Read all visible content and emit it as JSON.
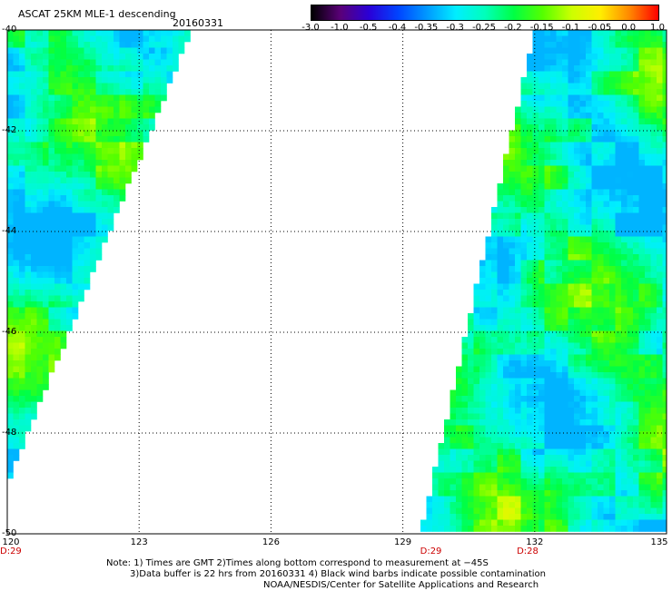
{
  "header": {
    "title": "ASCAT 25KM MLE-1 descending",
    "date": "20160331"
  },
  "colorbar": {
    "tick_labels": [
      "-3.0",
      "-1.0",
      "-0.5",
      "-0.4",
      "-0.35",
      "-0.3",
      "-0.25",
      "-0.2",
      "-0.15",
      "-0.1",
      "-0.05",
      "0.0",
      "1.0"
    ],
    "stops": [
      "#000000",
      "#5a0078",
      "#2a00d8",
      "#0044ff",
      "#0099ff",
      "#00eeff",
      "#00ffbb",
      "#00ff44",
      "#55ff00",
      "#ccff00",
      "#ffee00",
      "#ff8800",
      "#ff0000"
    ]
  },
  "map": {
    "lon_range": [
      120,
      135
    ],
    "lat_range": [
      -50,
      -40
    ],
    "lon_ticks": [
      "120",
      "123",
      "126",
      "129",
      "132",
      "135"
    ],
    "lat_ticks": [
      "-40",
      "-42",
      "-44",
      "-46",
      "-48",
      "-50"
    ],
    "time_labels": [
      {
        "text": "D:29",
        "lon": 120.0
      },
      {
        "text": "D:29",
        "lon": 129.6
      },
      {
        "text": "D:28",
        "lon": 131.8
      }
    ],
    "swaths": [
      {
        "name": "west-swath",
        "polygon": [
          [
            120,
            -40
          ],
          [
            124.2,
            -40
          ],
          [
            120,
            -49.0
          ],
          [
            120,
            -50
          ]
        ]
      },
      {
        "name": "east-swath",
        "polygon": [
          [
            132.0,
            -40
          ],
          [
            135,
            -40
          ],
          [
            135,
            -50
          ],
          [
            129.4,
            -50
          ]
        ]
      }
    ]
  },
  "notes": {
    "line1": "Note: 1) Times are GMT 2)Times along bottom correspond to measurement at −45S",
    "line2": "3)Data buffer is 22 hrs from 20160331 4) Black wind barbs indicate possible contamination",
    "line3": "NOAA/NESDIS/Center for Satellite Applications and Research"
  }
}
